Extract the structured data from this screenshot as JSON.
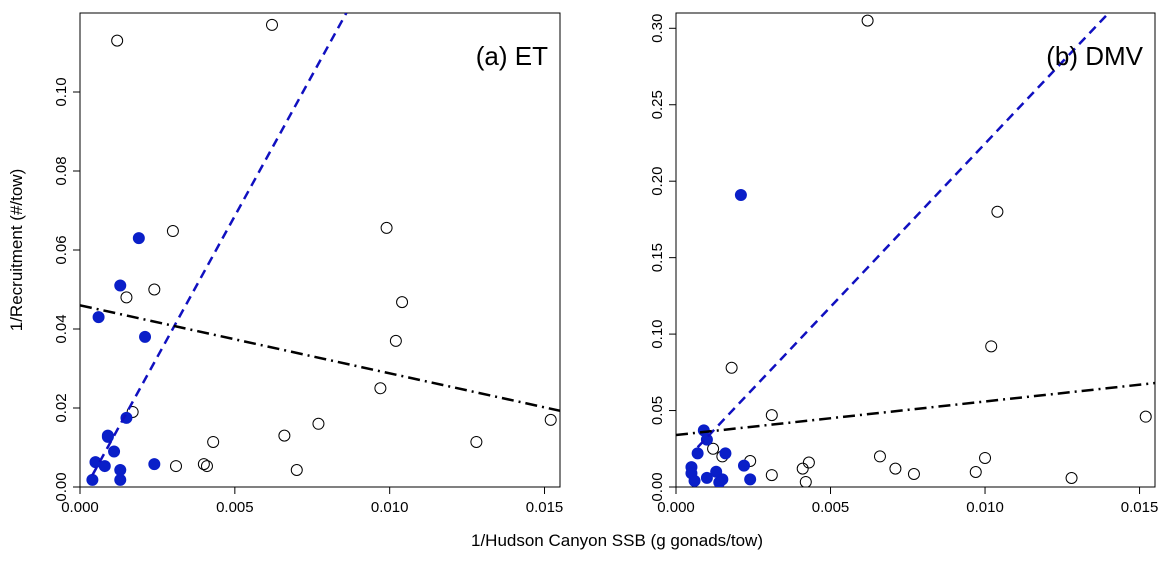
{
  "chart_data": [
    {
      "type": "scatter",
      "annotation": "(a) ET",
      "xlabel": "1/Hudson Canyon SSB (g gonads/tow)",
      "ylabel": "1/Recruitment (#/tow)",
      "xlim": [
        0,
        0.0155
      ],
      "ylim": [
        0,
        0.12
      ],
      "xticks": [
        {
          "value": 0,
          "label": "0.000"
        },
        {
          "value": 0.005,
          "label": "0.005"
        },
        {
          "value": 0.01,
          "label": "0.010"
        },
        {
          "value": 0.015,
          "label": "0.015"
        }
      ],
      "yticks": [
        {
          "value": 0,
          "label": "0.00"
        },
        {
          "value": 0.02,
          "label": "0.02"
        },
        {
          "value": 0.04,
          "label": "0.04"
        },
        {
          "value": 0.06,
          "label": "0.06"
        },
        {
          "value": 0.08,
          "label": "0.08"
        },
        {
          "value": 0.1,
          "label": "0.10"
        }
      ],
      "series": [
        {
          "style": "open",
          "color": "#000000",
          "x": [
            0.0012,
            0.0062,
            0.003,
            0.0099,
            0.0024,
            0.0015,
            0.0104,
            0.0102,
            0.0097,
            0.0017,
            0.0043,
            0.0066,
            0.0077,
            0.0031,
            0.004,
            0.0041,
            0.007,
            0.0128,
            0.0152
          ],
          "values": [
            0.113,
            0.117,
            0.0648,
            0.0656,
            0.05,
            0.048,
            0.0468,
            0.037,
            0.025,
            0.019,
            0.0114,
            0.013,
            0.016,
            0.0053,
            0.0058,
            0.0053,
            0.0043,
            0.0114,
            0.017
          ]
        },
        {
          "style": "filled",
          "color": "#0a1fc8",
          "x": [
            0.0019,
            0.0013,
            0.0006,
            0.0021,
            0.0015,
            0.0009,
            0.0009,
            0.0011,
            0.0005,
            0.0013,
            0.0008,
            0.0024,
            0.0004,
            0.0013
          ],
          "values": [
            0.063,
            0.051,
            0.043,
            0.038,
            0.0175,
            0.013,
            0.0127,
            0.009,
            0.0063,
            0.0043,
            0.0053,
            0.0058,
            0.0018,
            0.0018
          ]
        },
        {
          "style": "dashed",
          "color": "#1010c0",
          "x": [
            0.0004,
            0.0086
          ],
          "values": [
            0.003,
            0.12
          ]
        },
        {
          "style": "dashdot",
          "color": "#000000",
          "x": [
            0,
            0.0155
          ],
          "values": [
            0.046,
            0.0193
          ]
        }
      ]
    },
    {
      "type": "scatter",
      "annotation": "(b) DMV",
      "xlim": [
        0,
        0.0155
      ],
      "ylim": [
        0,
        0.31
      ],
      "xticks": [
        {
          "value": 0,
          "label": "0.000"
        },
        {
          "value": 0.005,
          "label": "0.005"
        },
        {
          "value": 0.01,
          "label": "0.010"
        },
        {
          "value": 0.015,
          "label": "0.015"
        }
      ],
      "yticks": [
        {
          "value": 0,
          "label": "0.00"
        },
        {
          "value": 0.05,
          "label": "0.05"
        },
        {
          "value": 0.1,
          "label": "0.10"
        },
        {
          "value": 0.15,
          "label": "0.15"
        },
        {
          "value": 0.2,
          "label": "0.20"
        },
        {
          "value": 0.25,
          "label": "0.25"
        },
        {
          "value": 0.3,
          "label": "0.30"
        }
      ],
      "series": [
        {
          "style": "open",
          "color": "#000000",
          "x": [
            0.0062,
            0.0104,
            0.0102,
            0.0018,
            0.0152,
            0.0031,
            0.0012,
            0.0015,
            0.0024,
            0.0043,
            0.0041,
            0.0066,
            0.0071,
            0.0077,
            0.0097,
            0.01,
            0.0031,
            0.0042,
            0.0128
          ],
          "values": [
            0.305,
            0.18,
            0.092,
            0.078,
            0.046,
            0.047,
            0.025,
            0.02,
            0.017,
            0.016,
            0.012,
            0.02,
            0.012,
            0.0085,
            0.0098,
            0.019,
            0.0078,
            0.0033,
            0.0059
          ]
        },
        {
          "style": "filled",
          "color": "#0a1fc8",
          "x": [
            0.0021,
            0.0009,
            0.001,
            0.0016,
            0.0007,
            0.0022,
            0.0005,
            0.0005,
            0.0013,
            0.001,
            0.0024,
            0.0006,
            0.0015,
            0.0014
          ],
          "values": [
            0.191,
            0.037,
            0.031,
            0.022,
            0.022,
            0.014,
            0.013,
            0.009,
            0.01,
            0.006,
            0.005,
            0.004,
            0.005,
            0.003
          ]
        },
        {
          "style": "dashed",
          "color": "#1010c0",
          "x": [
            0.0007,
            0.014
          ],
          "values": [
            0.026,
            0.31
          ]
        },
        {
          "style": "dashdot",
          "color": "#000000",
          "x": [
            0,
            0.0155
          ],
          "values": [
            0.034,
            0.068
          ]
        }
      ]
    }
  ]
}
